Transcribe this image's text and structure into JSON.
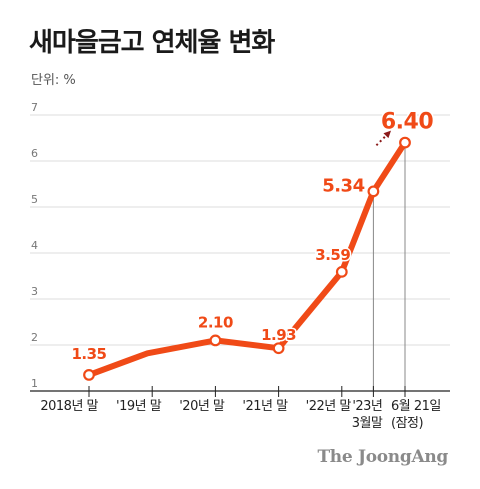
{
  "title": "새마을금고 연체율 변화",
  "unit_label": "단위: %",
  "credit": "The JoongAng",
  "colors": {
    "accent": "#f04a17",
    "grid": "#dcdcdc",
    "axis": "#222222",
    "arrow": "#8b1a1a",
    "guide": "#888888"
  },
  "chart_data": {
    "type": "line",
    "title": "새마을금고 연체율 변화",
    "ylabel": "단위: %",
    "ylim": [
      1,
      7
    ],
    "yticks": [
      "1",
      "2",
      "3",
      "4",
      "5",
      "6",
      "7"
    ],
    "grid": true,
    "xticks": [
      {
        "pos": 0,
        "lines": [
          "2018년 말"
        ]
      },
      {
        "pos": 2,
        "lines": [
          "'19년 말"
        ]
      },
      {
        "pos": 4,
        "lines": [
          "'20년 말"
        ]
      },
      {
        "pos": 6,
        "lines": [
          "'21년 말"
        ]
      },
      {
        "pos": 8,
        "lines": [
          "'22년 말"
        ]
      },
      {
        "pos": 9,
        "lines": [
          "'23년",
          "3월말"
        ]
      },
      {
        "pos": 10,
        "lines": [
          "6월 21일",
          "(잠정)"
        ]
      }
    ],
    "points": [
      {
        "x": 0,
        "y": 1.35,
        "label": "1.35"
      },
      {
        "x": 1.85,
        "y": 1.82,
        "label": ""
      },
      {
        "x": 4,
        "y": 2.1,
        "label": "2.10"
      },
      {
        "x": 6,
        "y": 1.93,
        "label": "1.93"
      },
      {
        "x": 8,
        "y": 3.59,
        "label": "3.59"
      },
      {
        "x": 9,
        "y": 5.34,
        "label": "5.34"
      },
      {
        "x": 10,
        "y": 6.4,
        "label": "6.40"
      }
    ],
    "annotation": "dotted arrow indicating increase from 5.34 to 6.40"
  }
}
